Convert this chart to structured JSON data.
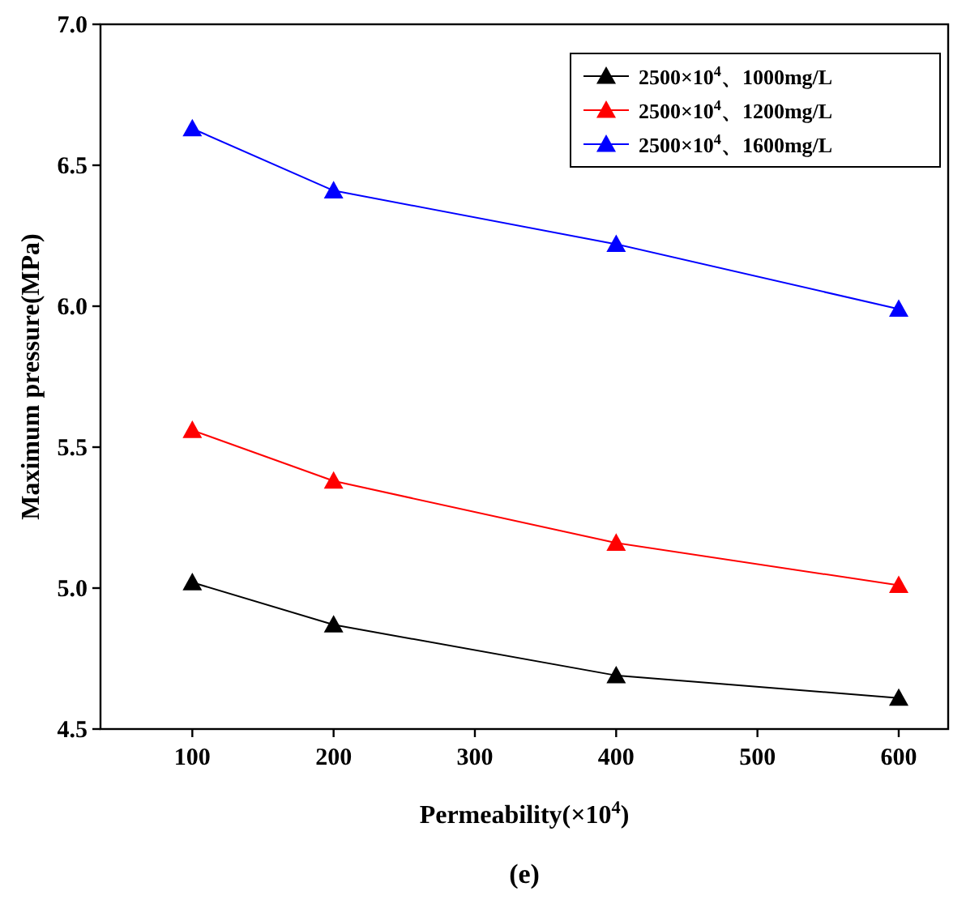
{
  "chart_data": {
    "type": "line",
    "xlabel": "Permeability(×10$^{4}$)",
    "ylabel": "Maximum pressure(MPa)",
    "annotations": [
      "(e)"
    ],
    "x": [
      100,
      200,
      400,
      600
    ],
    "series": [
      {
        "name": "2500×10$^{4}$、1000mg/L",
        "color": "#000000",
        "values": [
          5.02,
          4.87,
          4.69,
          4.61
        ]
      },
      {
        "name": "2500×10$^{4}$、1200mg/L",
        "color": "#ff0000",
        "values": [
          5.56,
          5.38,
          5.16,
          5.01
        ]
      },
      {
        "name": "2500×10$^{4}$、1600mg/L",
        "color": "#0000ff",
        "values": [
          6.63,
          6.41,
          6.22,
          5.99
        ]
      }
    ],
    "xlim": [
      35,
      635
    ],
    "ylim": [
      4.5,
      7.0
    ],
    "xticks": [
      100,
      200,
      300,
      400,
      500,
      600
    ],
    "yticks": [
      {
        "value": 4.5,
        "label": "4.5"
      },
      {
        "value": 5,
        "label": "5.0"
      },
      {
        "value": 5.5,
        "label": "5.5"
      },
      {
        "value": 6,
        "label": "6.0"
      },
      {
        "value": 6.5,
        "label": "6.5"
      },
      {
        "value": 7,
        "label": "7.0"
      }
    ],
    "marker": "triangle",
    "line_style": "solid",
    "legend": "top right",
    "grid": false
  }
}
